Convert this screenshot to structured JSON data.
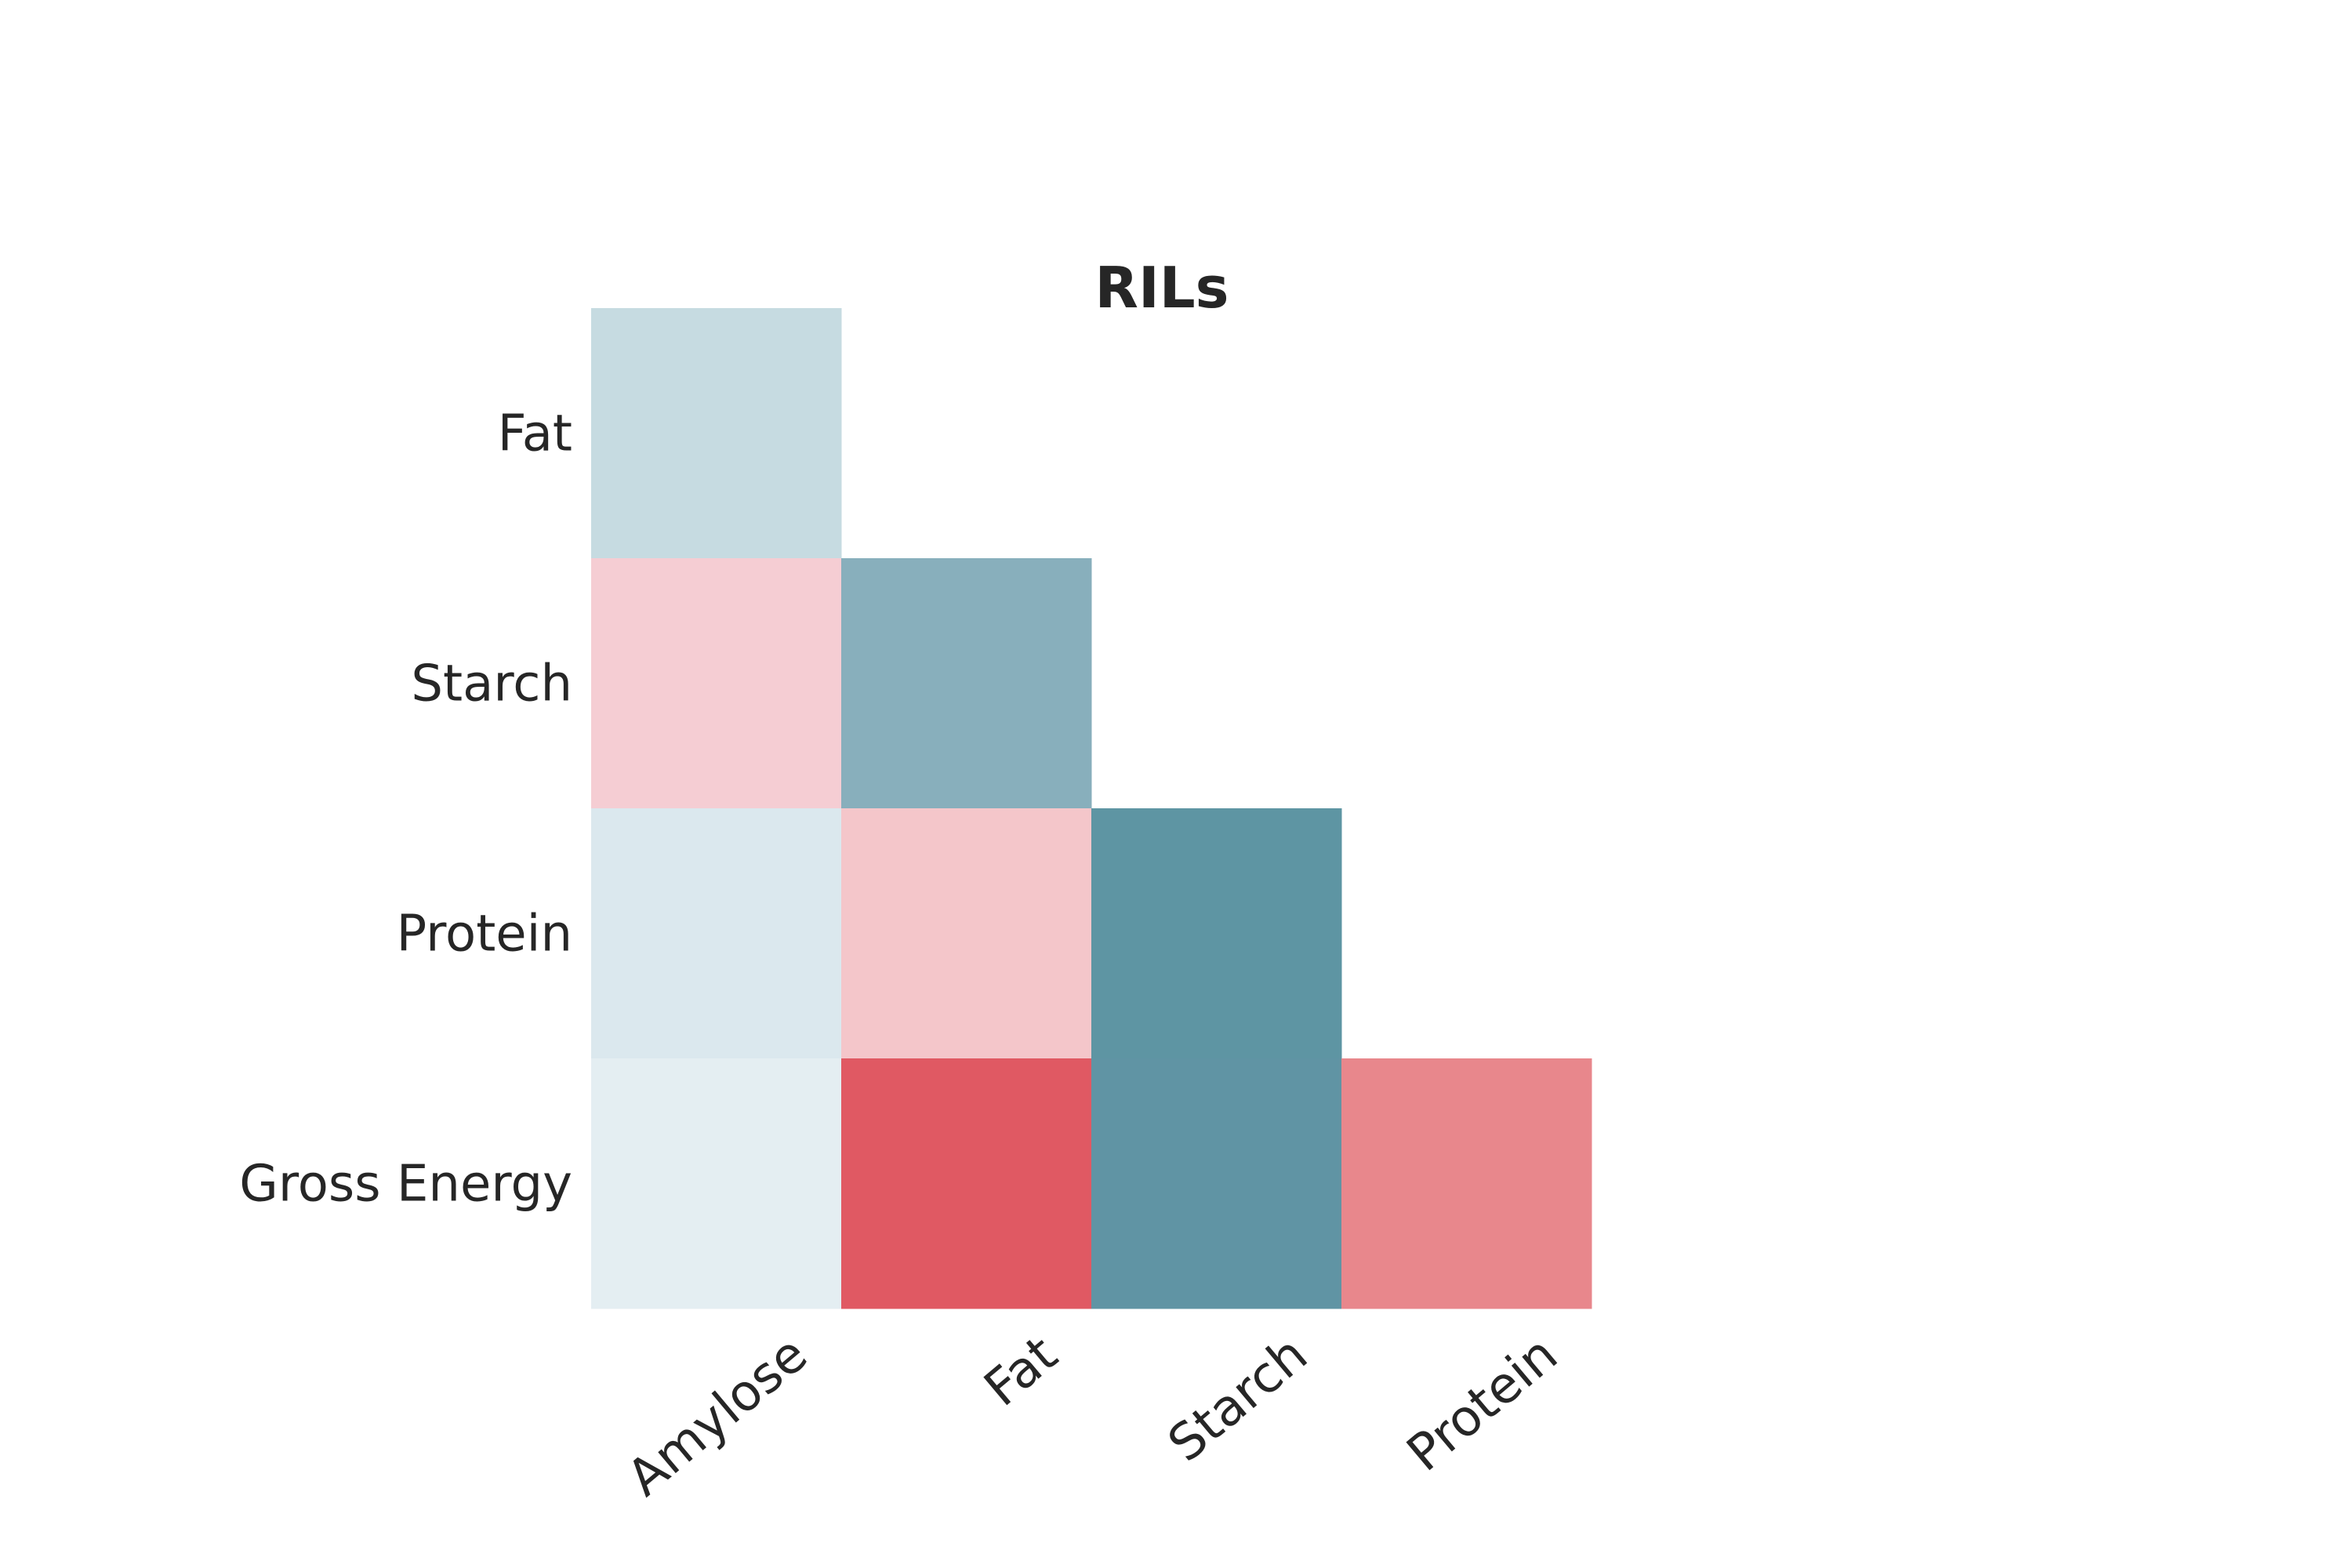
{
  "chart_data": {
    "type": "heatmap",
    "title": "RILs",
    "x_categories": [
      "Amylose",
      "Fat",
      "Starch",
      "Protein"
    ],
    "y_categories": [
      "Fat",
      "Starch",
      "Protein",
      "Gross Energy"
    ],
    "mask": "upper-triangle",
    "cells": [
      {
        "row": "Fat",
        "col": "Amylose",
        "color": "#c6dbe1"
      },
      {
        "row": "Starch",
        "col": "Amylose",
        "color": "#f5cdd3"
      },
      {
        "row": "Starch",
        "col": "Fat",
        "color": "#88afbc"
      },
      {
        "row": "Protein",
        "col": "Amylose",
        "color": "#dbe8ee"
      },
      {
        "row": "Protein",
        "col": "Fat",
        "color": "#f4c6ca"
      },
      {
        "row": "Protein",
        "col": "Starch",
        "color": "#5e95a3"
      },
      {
        "row": "Gross Energy",
        "col": "Amylose",
        "color": "#e4eef2"
      },
      {
        "row": "Gross Energy",
        "col": "Fat",
        "color": "#e05963"
      },
      {
        "row": "Gross Energy",
        "col": "Starch",
        "color": "#6094a4"
      },
      {
        "row": "Gross Energy",
        "col": "Protein",
        "color": "#e8878c"
      }
    ],
    "grid": false,
    "legend": "none"
  }
}
